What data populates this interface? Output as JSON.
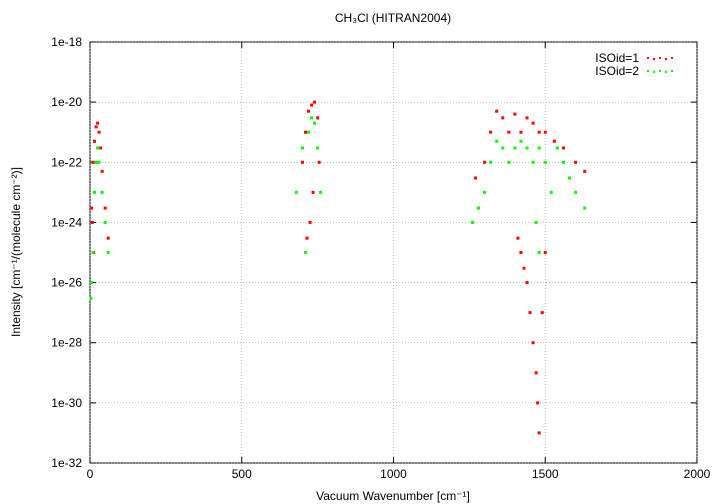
{
  "chart_data": {
    "type": "scatter",
    "title": "CH₃Cl (HITRAN2004)",
    "x_label": "Vacuum Wavenumber [cm⁻¹]",
    "y_label": "Intensity [cm⁻¹/(molecule cm⁻²)]",
    "xlim": [
      0,
      2000
    ],
    "xticks": [
      0,
      500,
      1000,
      1500,
      2000
    ],
    "ylim": [
      1e-32,
      1e-18
    ],
    "yticks": [
      1e-32,
      1e-30,
      1e-28,
      1e-26,
      1e-24,
      1e-22,
      1e-20,
      1e-18
    ],
    "log_y": true,
    "grid": true,
    "legend": "top-right",
    "series": [
      {
        "name": "ISOid=1",
        "color": "#ff0000",
        "x": [
          5,
          10,
          15,
          20,
          25,
          30,
          35,
          40,
          50,
          60,
          12,
          8,
          700,
          710,
          720,
          730,
          740,
          750,
          755,
          715,
          725,
          735,
          1270,
          1300,
          1320,
          1340,
          1360,
          1380,
          1400,
          1420,
          1440,
          1460,
          1480,
          1500,
          1530,
          1560,
          1600,
          1630,
          1410,
          1420,
          1430,
          1440,
          1450,
          1460,
          1470,
          1475,
          1480,
          1490,
          1500
        ],
        "values": [
          3e-24,
          1e-22,
          5e-22,
          1.5e-21,
          2e-21,
          1e-21,
          3e-22,
          5e-23,
          3e-24,
          3e-25,
          1e-25,
          1e-24,
          1e-22,
          1e-21,
          5e-21,
          8e-21,
          1e-20,
          3e-21,
          1e-22,
          3e-25,
          1e-24,
          1e-23,
          3e-23,
          1e-22,
          1e-21,
          5e-21,
          3e-21,
          1e-21,
          4e-21,
          1e-21,
          3e-21,
          2e-21,
          1e-21,
          1e-21,
          5e-22,
          3e-22,
          1e-22,
          5e-23,
          3e-25,
          1e-25,
          3e-26,
          1e-26,
          1e-27,
          1e-28,
          1e-29,
          1e-30,
          1e-31,
          1e-27,
          1e-25
        ]
      },
      {
        "name": "ISOid=2",
        "color": "#00ff00",
        "x": [
          5,
          10,
          15,
          20,
          25,
          30,
          40,
          50,
          60,
          3,
          680,
          700,
          720,
          730,
          740,
          750,
          760,
          710,
          1260,
          1280,
          1300,
          1320,
          1340,
          1360,
          1380,
          1400,
          1420,
          1440,
          1460,
          1480,
          1500,
          1520,
          1540,
          1560,
          1580,
          1600,
          1630,
          1470,
          1480
        ],
        "values": [
          1e-26,
          1e-25,
          1e-23,
          1e-22,
          3e-22,
          1e-22,
          1e-23,
          1e-24,
          1e-25,
          3e-27,
          1e-23,
          3e-22,
          1e-21,
          3e-21,
          2e-21,
          3e-22,
          1e-23,
          1e-25,
          1e-24,
          3e-24,
          1e-23,
          1e-22,
          5e-22,
          3e-22,
          1e-22,
          3e-22,
          5e-22,
          3e-22,
          1e-22,
          3e-22,
          1e-22,
          1e-23,
          3e-22,
          1e-22,
          3e-23,
          1e-23,
          3e-24,
          1e-24,
          1e-25
        ]
      }
    ]
  }
}
